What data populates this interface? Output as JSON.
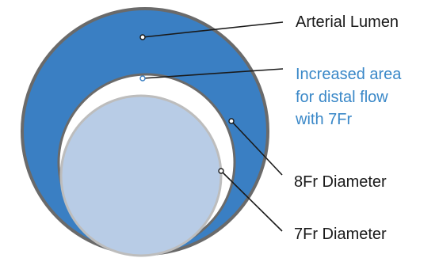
{
  "labels": {
    "arterial_lumen": "Arterial Lumen",
    "increased_area_line1": "Increased area",
    "increased_area_line2": "for distal flow",
    "increased_area_line3": "with 7Fr",
    "fr8_diameter": "8Fr Diameter",
    "fr7_diameter": "7Fr Diameter"
  },
  "colors": {
    "arterial_lumen_fill": "#3a7fc3",
    "arterial_lumen_stroke": "#6a6a6a",
    "sheath_8fr_fill": "#ffffff",
    "sheath_7fr_fill": "#b8cce6",
    "sheath_7fr_stroke": "#bdbdbd",
    "label_text": "#1a1a1a",
    "highlight_text": "#3a88c8",
    "leader_line": "#1a1a1a"
  }
}
